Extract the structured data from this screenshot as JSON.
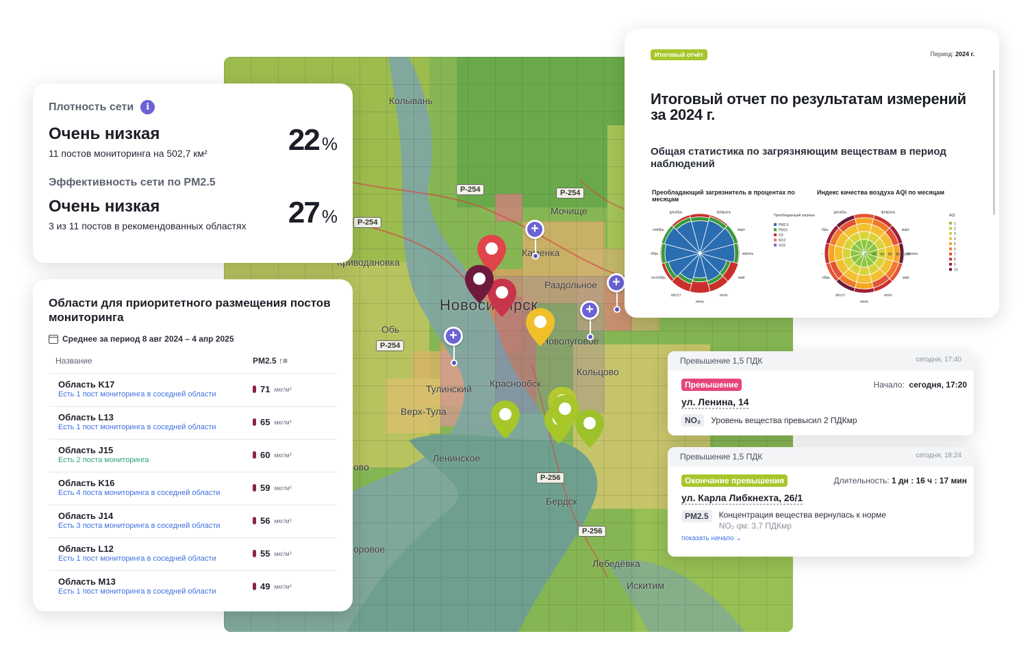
{
  "map": {
    "labels": {
      "kolyvan": "Колывань",
      "mochishche": "Мочище",
      "krivodanovka": "Криводановка",
      "kamenka": "Каменка",
      "razdolnoe": "Раздольное",
      "novosibirsk": "Новосибирск",
      "ob": "Обь",
      "novolugovoe": "Новолуговое",
      "koltsovo": "Кольцово",
      "tulinsky": "Тулинский",
      "krasnoobsk": "Краснообск",
      "verkh_tula": "Верх-Тула",
      "leninskoe": "Ленинское",
      "berdsk": "Бердск",
      "lebedevka": "Лебедёвка",
      "iskitim": "Искитим",
      "ovo": "ово",
      "orovoe": "оровое"
    },
    "roads": {
      "r1": "Р-254",
      "r2": "Р-254",
      "r3": "Р-254",
      "r4": "Р-254",
      "r5": "Р-256",
      "r6": "Р-256"
    }
  },
  "density": {
    "title": "Плотность сети",
    "info_icon": "i",
    "level": "Очень низкая",
    "desc": "11 постов мониторинга на 502,7 км²",
    "pct": "22",
    "pct_unit": "%",
    "eff_title": "Эффективность сети по PM2.5",
    "eff_level": "Очень низкая",
    "eff_desc": "3 из 11 постов в рекомендованных областях",
    "eff_pct": "27",
    "eff_unit": "%"
  },
  "areas": {
    "title": "Области для приоритетного размещения постов мониторинга",
    "period": "Среднее за период 8 авг 2024 – 4 апр 2025",
    "col_name": "Название",
    "col_pm": "PM2.5",
    "sort_icon": "↑≡",
    "unit": "мкг/м³",
    "rows": [
      {
        "name": "Область K17",
        "desc": "Есть 1 пост мониторинга в соседней области",
        "value": "71"
      },
      {
        "name": "Область L13",
        "desc": "Есть 1 пост мониторинга в соседней области",
        "value": "65"
      },
      {
        "name": "Область J15",
        "desc": "Есть 2 поста мониторинга",
        "value": "60"
      },
      {
        "name": "Область K16",
        "desc": "Есть 4 поста мониторинга в соседней области",
        "value": "59"
      },
      {
        "name": "Область J14",
        "desc": "Есть 3 поста мониторинга в соседней области",
        "value": "56"
      },
      {
        "name": "Область L12",
        "desc": "Есть 1 пост мониторинга в соседней области",
        "value": "55"
      },
      {
        "name": "Область M13",
        "desc": "Есть 1 пост мониторинга в соседней области",
        "value": "49"
      }
    ]
  },
  "report": {
    "tag": "Итоговый отчёт",
    "period_label": "Период:",
    "period_value": "2024 г.",
    "title": "Итоговый отчет по результатам измерений за 2024 г.",
    "subtitle": "Общая статистика по загрязняющим веществам в период наблюдений",
    "chart1_title": "Преобладающий загрязнитель в процентах по месяцам",
    "chart2_title": "Индекс качества воздуха AQI по месяцам",
    "months": [
      "январь",
      "февраль",
      "март",
      "апрель",
      "май",
      "июнь",
      "июль",
      "август",
      "сентябрь",
      "октябрь",
      "ноябрь",
      "декабрь"
    ],
    "legend1_title": "Преобладающий загрязнитель",
    "legend1": [
      {
        "name": "PM2.5",
        "color": "#2a6db0"
      },
      {
        "name": "PM10",
        "color": "#3a9a3a"
      },
      {
        "name": "O3",
        "color": "#c9302c"
      },
      {
        "name": "NO2",
        "color": "#d07a7a"
      },
      {
        "name": "SO2",
        "color": "#7b6bc4"
      }
    ],
    "legend2_title": "AQI",
    "legend2": [
      {
        "name": "1",
        "color": "#8cc63f"
      },
      {
        "name": "2",
        "color": "#b6cf3a"
      },
      {
        "name": "3",
        "color": "#d9d33a"
      },
      {
        "name": "4",
        "color": "#f2c030"
      },
      {
        "name": "5",
        "color": "#f5a623"
      },
      {
        "name": "6",
        "color": "#ef7a2a"
      },
      {
        "name": "7",
        "color": "#e25433"
      },
      {
        "name": "8",
        "color": "#c9302c"
      },
      {
        "name": "9",
        "color": "#a11f3a"
      },
      {
        "name": "10",
        "color": "#6b1a3a"
      }
    ],
    "radial_ticks": [
      "0",
      "20",
      "40",
      "60",
      "80",
      "100"
    ]
  },
  "alert1": {
    "header": "Превышение  1,5 ПДК",
    "time": "сегодня, 17:40",
    "badge": "Превышение",
    "badge_color": "#e6457a",
    "meta_label": "Начало:",
    "meta_value": "сегодня, 17:20",
    "street": "ул. Ленина, 14",
    "chip": "NO₂",
    "message": "Уровень вещества превысил 2 ПДКмр"
  },
  "alert2": {
    "header": "Превышение  1,5 ПДК",
    "time": "сегодня, 18:24",
    "badge": "Окончание превышения",
    "badge_color": "#a6c62a",
    "meta_label": "Длительность:",
    "meta_value": "1 дн : 16 ч : 17 мин",
    "street": "ул. Карла Либкнехта, 26/1",
    "chip": "PM2.5",
    "message": "Концентрация вещества вернулась к норме",
    "message2": "NO₂ qм: 3,7 ПДКмр",
    "show_more": "показать начало"
  }
}
